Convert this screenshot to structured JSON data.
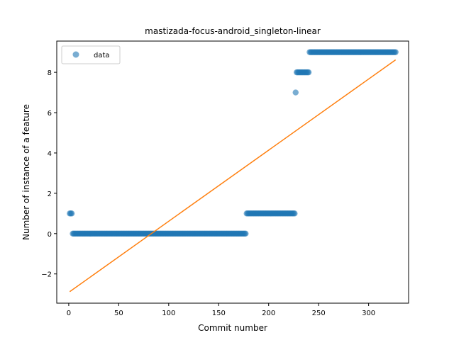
{
  "chart_data": {
    "type": "scatter",
    "title": "mastizada-focus-android_singleton-linear",
    "xlabel": "Commit number",
    "ylabel": "Number of instance of a feature",
    "xlim": [
      -12,
      340
    ],
    "ylim": [
      -3.45,
      9.55
    ],
    "xticks": [
      0,
      50,
      100,
      150,
      200,
      250,
      300
    ],
    "yticks": [
      -2,
      0,
      2,
      4,
      6,
      8
    ],
    "grid": false,
    "legend": {
      "placement": "top-left",
      "entries": [
        "data"
      ]
    },
    "colors": {
      "data": "#1f77b4",
      "fit": "#ff7f0e"
    },
    "series": [
      {
        "name": "data",
        "kind": "scatter",
        "segments": [
          {
            "x_start": 1,
            "x_end": 3,
            "y": 1
          },
          {
            "x_start": 4,
            "x_end": 177,
            "y": 0
          },
          {
            "x_start": 178,
            "x_end": 226,
            "y": 1
          },
          {
            "x_start": 227,
            "x_end": 227,
            "y": 7
          },
          {
            "x_start": 228,
            "x_end": 240,
            "y": 8
          },
          {
            "x_start": 241,
            "x_end": 327,
            "y": 9
          }
        ]
      },
      {
        "kind": "line",
        "x": [
          1,
          327
        ],
        "y": [
          -2.88,
          8.62
        ]
      }
    ]
  }
}
